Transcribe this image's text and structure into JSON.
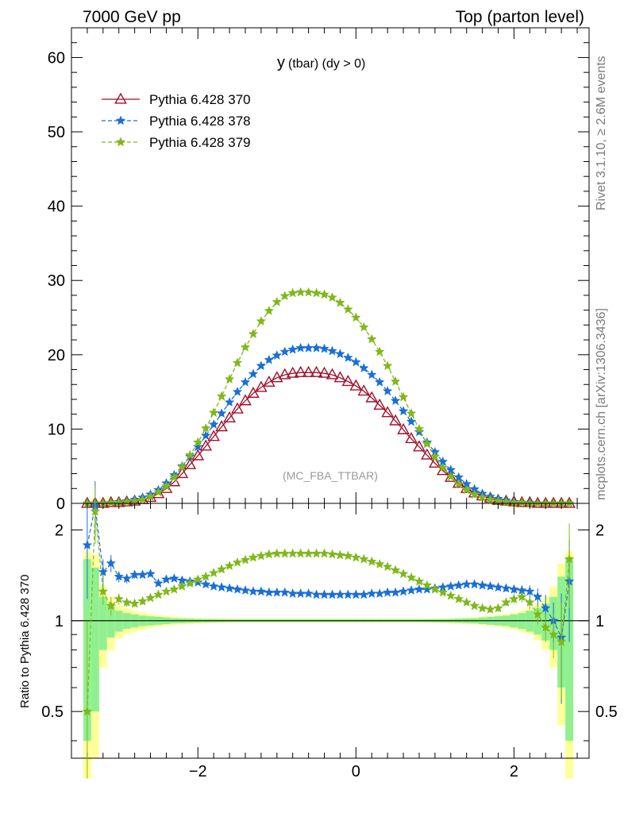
{
  "header": {
    "left": "7000 GeV pp",
    "right": "Top (parton level)"
  },
  "side_labels": {
    "rivet": "Rivet 3.1.10, ≥ 2.6M events",
    "mcplots": "mcplots.cern.ch [arXiv:1306.3436]"
  },
  "chart_data": [
    {
      "type": "line",
      "panel": "main",
      "title_main": "y",
      "title_sub": "(tbar) (dy > 0)",
      "watermark": "(MC_FBA_TTBAR)",
      "xlim": [
        -3.6,
        2.95
      ],
      "ylim": [
        0,
        64
      ],
      "yticks": [
        0,
        10,
        20,
        30,
        40,
        50,
        60
      ],
      "ytick_labels": [
        "0",
        "10",
        "20",
        "30",
        "40",
        "50",
        "60"
      ],
      "legend_position": "top-left",
      "series": [
        {
          "name": "Pythia 6.428 370",
          "color": "#a0102a",
          "marker": "triangle-open",
          "linestyle": "solid",
          "x": [
            -3.4,
            -3.3,
            -3.2,
            -3.1,
            -3.0,
            -2.9,
            -2.8,
            -2.7,
            -2.6,
            -2.5,
            -2.4,
            -2.3,
            -2.2,
            -2.1,
            -2.0,
            -1.9,
            -1.8,
            -1.7,
            -1.6,
            -1.5,
            -1.4,
            -1.3,
            -1.2,
            -1.1,
            -1.0,
            -0.9,
            -0.8,
            -0.7,
            -0.6,
            -0.5,
            -0.4,
            -0.3,
            -0.2,
            -0.1,
            0.0,
            0.1,
            0.2,
            0.3,
            0.4,
            0.5,
            0.6,
            0.7,
            0.8,
            0.9,
            1.0,
            1.1,
            1.2,
            1.3,
            1.4,
            1.5,
            1.6,
            1.7,
            1.8,
            1.9,
            2.0,
            2.1,
            2.2,
            2.3,
            2.4,
            2.5,
            2.6,
            2.7
          ],
          "y": [
            0.0,
            0.0,
            0.0,
            0.1,
            0.1,
            0.2,
            0.3,
            0.5,
            0.8,
            1.3,
            2.0,
            2.9,
            4.0,
            5.2,
            6.4,
            7.7,
            9.0,
            10.3,
            11.5,
            12.7,
            13.8,
            14.8,
            15.6,
            16.3,
            16.9,
            17.3,
            17.5,
            17.6,
            17.6,
            17.6,
            17.5,
            17.3,
            16.9,
            16.4,
            15.8,
            15.1,
            14.2,
            13.2,
            12.2,
            11.1,
            9.9,
            8.7,
            7.6,
            6.5,
            5.4,
            4.4,
            3.5,
            2.7,
            2.0,
            1.4,
            1.0,
            0.7,
            0.4,
            0.3,
            0.2,
            0.1,
            0.1,
            0.0,
            0.0,
            0.0,
            0.0,
            0.0
          ]
        },
        {
          "name": "Pythia 6.428 378",
          "color": "#1a6fd6",
          "marker": "star",
          "linestyle": "dashed",
          "x": [
            -3.4,
            -3.3,
            -3.2,
            -3.1,
            -3.0,
            -2.9,
            -2.8,
            -2.7,
            -2.6,
            -2.5,
            -2.4,
            -2.3,
            -2.2,
            -2.1,
            -2.0,
            -1.9,
            -1.8,
            -1.7,
            -1.6,
            -1.5,
            -1.4,
            -1.3,
            -1.2,
            -1.1,
            -1.0,
            -0.9,
            -0.8,
            -0.7,
            -0.6,
            -0.5,
            -0.4,
            -0.3,
            -0.2,
            -0.1,
            0.0,
            0.1,
            0.2,
            0.3,
            0.4,
            0.5,
            0.6,
            0.7,
            0.8,
            0.9,
            1.0,
            1.1,
            1.2,
            1.3,
            1.4,
            1.5,
            1.6,
            1.7,
            1.8,
            1.9,
            2.0,
            2.1,
            2.2,
            2.3,
            2.4,
            2.5,
            2.6,
            2.7
          ],
          "y": [
            0.0,
            0.0,
            0.0,
            0.1,
            0.2,
            0.3,
            0.5,
            0.8,
            1.2,
            1.8,
            2.7,
            3.8,
            5.0,
            6.3,
            7.6,
            9.1,
            10.6,
            12.1,
            13.6,
            15.0,
            16.3,
            17.4,
            18.5,
            19.3,
            19.9,
            20.4,
            20.7,
            20.9,
            20.9,
            20.9,
            20.8,
            20.5,
            20.1,
            19.6,
            19.0,
            18.2,
            17.3,
            16.3,
            15.1,
            13.8,
            12.4,
            11.0,
            9.6,
            8.2,
            6.9,
            5.6,
            4.5,
            3.5,
            2.6,
            1.9,
            1.3,
            0.9,
            0.6,
            0.4,
            0.2,
            0.1,
            0.1,
            0.0,
            0.0,
            0.0,
            0.0,
            0.0
          ]
        },
        {
          "name": "Pythia 6.428 379",
          "color": "#7fb81a",
          "marker": "star",
          "linestyle": "dashed",
          "x": [
            -3.4,
            -3.3,
            -3.2,
            -3.1,
            -3.0,
            -2.9,
            -2.8,
            -2.7,
            -2.6,
            -2.5,
            -2.4,
            -2.3,
            -2.2,
            -2.1,
            -2.0,
            -1.9,
            -1.8,
            -1.7,
            -1.6,
            -1.5,
            -1.4,
            -1.3,
            -1.2,
            -1.1,
            -1.0,
            -0.9,
            -0.8,
            -0.7,
            -0.6,
            -0.5,
            -0.4,
            -0.3,
            -0.2,
            -0.1,
            0.0,
            0.1,
            0.2,
            0.3,
            0.4,
            0.5,
            0.6,
            0.7,
            0.8,
            0.9,
            1.0,
            1.1,
            1.2,
            1.3,
            1.4,
            1.5,
            1.6,
            1.7,
            1.8,
            1.9,
            2.0,
            2.1,
            2.2,
            2.3,
            2.4,
            2.5,
            2.6,
            2.7
          ],
          "y": [
            0.0,
            0.0,
            0.0,
            0.1,
            0.1,
            0.2,
            0.3,
            0.5,
            0.9,
            1.5,
            2.3,
            3.5,
            4.9,
            6.5,
            8.2,
            10.1,
            12.2,
            14.4,
            16.7,
            18.9,
            21.0,
            22.8,
            24.5,
            25.9,
            27.1,
            27.9,
            28.3,
            28.4,
            28.4,
            28.3,
            28.1,
            27.7,
            27.0,
            26.1,
            25.0,
            23.7,
            22.1,
            20.4,
            18.5,
            16.4,
            14.3,
            12.1,
            10.0,
            8.0,
            6.3,
            4.8,
            3.6,
            2.6,
            1.8,
            1.2,
            0.8,
            0.5,
            0.3,
            0.2,
            0.1,
            0.1,
            0.0,
            0.0,
            0.0,
            0.0,
            0.0,
            0.0
          ]
        }
      ]
    },
    {
      "type": "line",
      "panel": "ratio",
      "ylabel": "Ratio to Pythia 6.428 370",
      "xlim": [
        -3.6,
        2.95
      ],
      "ylim": [
        0.35,
        2.45
      ],
      "log_y": true,
      "xticks": [
        -2,
        0,
        2
      ],
      "xtick_labels": [
        "−2",
        "0",
        "2"
      ],
      "yticks": [
        0.5,
        1,
        2
      ],
      "ytick_labels": [
        "0.5",
        "1",
        "2"
      ],
      "band_colors": {
        "outer": "#ffff99",
        "inner": "#90f090"
      },
      "band": {
        "x": [
          -3.4,
          -3.3,
          -3.2,
          -3.1,
          -3.0,
          -2.9,
          -2.8,
          -2.7,
          -2.6,
          -2.5,
          -2.4,
          -2.3,
          -2.2,
          -2.1,
          -2.0,
          -1.9,
          -1.8,
          -1.7,
          -1.6,
          -1.5,
          -1.4,
          -1.3,
          -1.2,
          -1.1,
          -1.0,
          -0.9,
          -0.8,
          -0.7,
          -0.6,
          -0.5,
          -0.4,
          -0.3,
          -0.2,
          -0.1,
          0.0,
          0.1,
          0.2,
          0.3,
          0.4,
          0.5,
          0.6,
          0.7,
          0.8,
          0.9,
          1.0,
          1.1,
          1.2,
          1.3,
          1.4,
          1.5,
          1.6,
          1.7,
          1.8,
          1.9,
          2.0,
          2.1,
          2.2,
          2.3,
          2.4,
          2.5,
          2.6,
          2.7
        ],
        "inner": [
          0.6,
          0.5,
          0.2,
          0.12,
          0.08,
          0.06,
          0.05,
          0.04,
          0.035,
          0.03,
          0.025,
          0.02,
          0.018,
          0.016,
          0.014,
          0.013,
          0.012,
          0.011,
          0.01,
          0.01,
          0.01,
          0.01,
          0.01,
          0.01,
          0.01,
          0.01,
          0.01,
          0.01,
          0.01,
          0.01,
          0.01,
          0.01,
          0.01,
          0.01,
          0.01,
          0.01,
          0.01,
          0.01,
          0.01,
          0.01,
          0.01,
          0.01,
          0.01,
          0.011,
          0.012,
          0.013,
          0.014,
          0.016,
          0.018,
          0.02,
          0.025,
          0.03,
          0.035,
          0.04,
          0.05,
          0.06,
          0.08,
          0.1,
          0.14,
          0.2,
          0.4,
          0.6
        ],
        "outer": [
          0.7,
          0.65,
          0.3,
          0.2,
          0.13,
          0.1,
          0.08,
          0.065,
          0.055,
          0.045,
          0.038,
          0.032,
          0.028,
          0.025,
          0.022,
          0.02,
          0.018,
          0.017,
          0.016,
          0.015,
          0.015,
          0.015,
          0.015,
          0.015,
          0.015,
          0.015,
          0.015,
          0.015,
          0.015,
          0.015,
          0.015,
          0.015,
          0.015,
          0.015,
          0.015,
          0.015,
          0.015,
          0.015,
          0.015,
          0.015,
          0.015,
          0.015,
          0.015,
          0.016,
          0.017,
          0.018,
          0.02,
          0.022,
          0.025,
          0.028,
          0.032,
          0.038,
          0.045,
          0.055,
          0.065,
          0.08,
          0.1,
          0.14,
          0.2,
          0.3,
          0.55,
          0.7
        ]
      },
      "series": [
        {
          "name": "Pythia 6.428 378",
          "color": "#1a6fd6",
          "marker": "star",
          "linestyle": "dashed",
          "x": [
            -3.4,
            -3.3,
            -3.2,
            -3.1,
            -3.0,
            -2.9,
            -2.8,
            -2.7,
            -2.6,
            -2.5,
            -2.4,
            -2.3,
            -2.2,
            -2.1,
            -2.0,
            -1.9,
            -1.8,
            -1.7,
            -1.6,
            -1.5,
            -1.4,
            -1.3,
            -1.2,
            -1.1,
            -1.0,
            -0.9,
            -0.8,
            -0.7,
            -0.6,
            -0.5,
            -0.4,
            -0.3,
            -0.2,
            -0.1,
            0.0,
            0.1,
            0.2,
            0.3,
            0.4,
            0.5,
            0.6,
            0.7,
            0.8,
            0.9,
            1.0,
            1.1,
            1.2,
            1.3,
            1.4,
            1.5,
            1.6,
            1.7,
            1.8,
            1.9,
            2.0,
            2.1,
            2.2,
            2.3,
            2.4,
            2.5,
            2.6,
            2.7
          ],
          "y": [
            1.78,
            2.4,
            1.45,
            1.55,
            1.4,
            1.38,
            1.42,
            1.42,
            1.43,
            1.33,
            1.37,
            1.38,
            1.36,
            1.35,
            1.34,
            1.32,
            1.3,
            1.29,
            1.28,
            1.27,
            1.26,
            1.25,
            1.25,
            1.24,
            1.24,
            1.24,
            1.23,
            1.23,
            1.23,
            1.22,
            1.22,
            1.22,
            1.22,
            1.22,
            1.22,
            1.22,
            1.23,
            1.23,
            1.24,
            1.24,
            1.25,
            1.26,
            1.27,
            1.27,
            1.28,
            1.29,
            1.3,
            1.31,
            1.32,
            1.32,
            1.31,
            1.3,
            1.29,
            1.28,
            1.27,
            1.26,
            1.25,
            1.2,
            1.1,
            1.0,
            0.88,
            1.35
          ],
          "err": [
            0.6,
            0.5,
            0.15,
            0.1,
            0.06,
            0.05,
            0.04,
            0.03,
            0.03,
            0.02,
            0.02,
            0.02,
            0.015,
            0.015,
            0.015,
            0.012,
            0.012,
            0.01,
            0.01,
            0.01,
            0.01,
            0.01,
            0.01,
            0.01,
            0.01,
            0.01,
            0.01,
            0.01,
            0.01,
            0.01,
            0.01,
            0.01,
            0.01,
            0.01,
            0.01,
            0.01,
            0.01,
            0.01,
            0.01,
            0.01,
            0.01,
            0.01,
            0.01,
            0.01,
            0.012,
            0.012,
            0.015,
            0.015,
            0.02,
            0.02,
            0.02,
            0.025,
            0.03,
            0.03,
            0.04,
            0.05,
            0.06,
            0.08,
            0.12,
            0.15,
            0.35,
            0.5
          ]
        },
        {
          "name": "Pythia 6.428 379",
          "color": "#7fb81a",
          "marker": "star",
          "linestyle": "dashed",
          "x": [
            -3.4,
            -3.3,
            -3.2,
            -3.1,
            -3.0,
            -2.9,
            -2.8,
            -2.7,
            -2.6,
            -2.5,
            -2.4,
            -2.3,
            -2.2,
            -2.1,
            -2.0,
            -1.9,
            -1.8,
            -1.7,
            -1.6,
            -1.5,
            -1.4,
            -1.3,
            -1.2,
            -1.1,
            -1.0,
            -0.9,
            -0.8,
            -0.7,
            -0.6,
            -0.5,
            -0.4,
            -0.3,
            -0.2,
            -0.1,
            0.0,
            0.1,
            0.2,
            0.3,
            0.4,
            0.5,
            0.6,
            0.7,
            0.8,
            0.9,
            1.0,
            1.1,
            1.2,
            1.3,
            1.4,
            1.5,
            1.6,
            1.7,
            1.8,
            1.9,
            2.0,
            2.1,
            2.2,
            2.3,
            2.4,
            2.5,
            2.6,
            2.7
          ],
          "y": [
            0.5,
            2.3,
            1.25,
            1.12,
            1.18,
            1.15,
            1.14,
            1.16,
            1.19,
            1.22,
            1.25,
            1.27,
            1.3,
            1.33,
            1.37,
            1.4,
            1.44,
            1.48,
            1.52,
            1.56,
            1.59,
            1.62,
            1.64,
            1.66,
            1.67,
            1.67,
            1.67,
            1.67,
            1.67,
            1.67,
            1.67,
            1.66,
            1.65,
            1.64,
            1.62,
            1.6,
            1.57,
            1.54,
            1.51,
            1.47,
            1.43,
            1.39,
            1.35,
            1.31,
            1.27,
            1.24,
            1.21,
            1.18,
            1.15,
            1.12,
            1.1,
            1.09,
            1.1,
            1.15,
            1.18,
            1.2,
            1.15,
            1.05,
            0.95,
            0.9,
            0.85,
            1.6
          ],
          "err": [
            0.5,
            0.5,
            0.12,
            0.08,
            0.05,
            0.04,
            0.03,
            0.03,
            0.02,
            0.02,
            0.02,
            0.02,
            0.015,
            0.015,
            0.015,
            0.012,
            0.012,
            0.01,
            0.01,
            0.01,
            0.01,
            0.01,
            0.01,
            0.01,
            0.01,
            0.01,
            0.01,
            0.01,
            0.01,
            0.01,
            0.01,
            0.01,
            0.01,
            0.01,
            0.01,
            0.01,
            0.01,
            0.01,
            0.01,
            0.01,
            0.01,
            0.01,
            0.01,
            0.01,
            0.012,
            0.012,
            0.015,
            0.015,
            0.02,
            0.02,
            0.02,
            0.025,
            0.03,
            0.03,
            0.04,
            0.05,
            0.06,
            0.08,
            0.1,
            0.15,
            0.3,
            0.5
          ]
        }
      ]
    }
  ]
}
